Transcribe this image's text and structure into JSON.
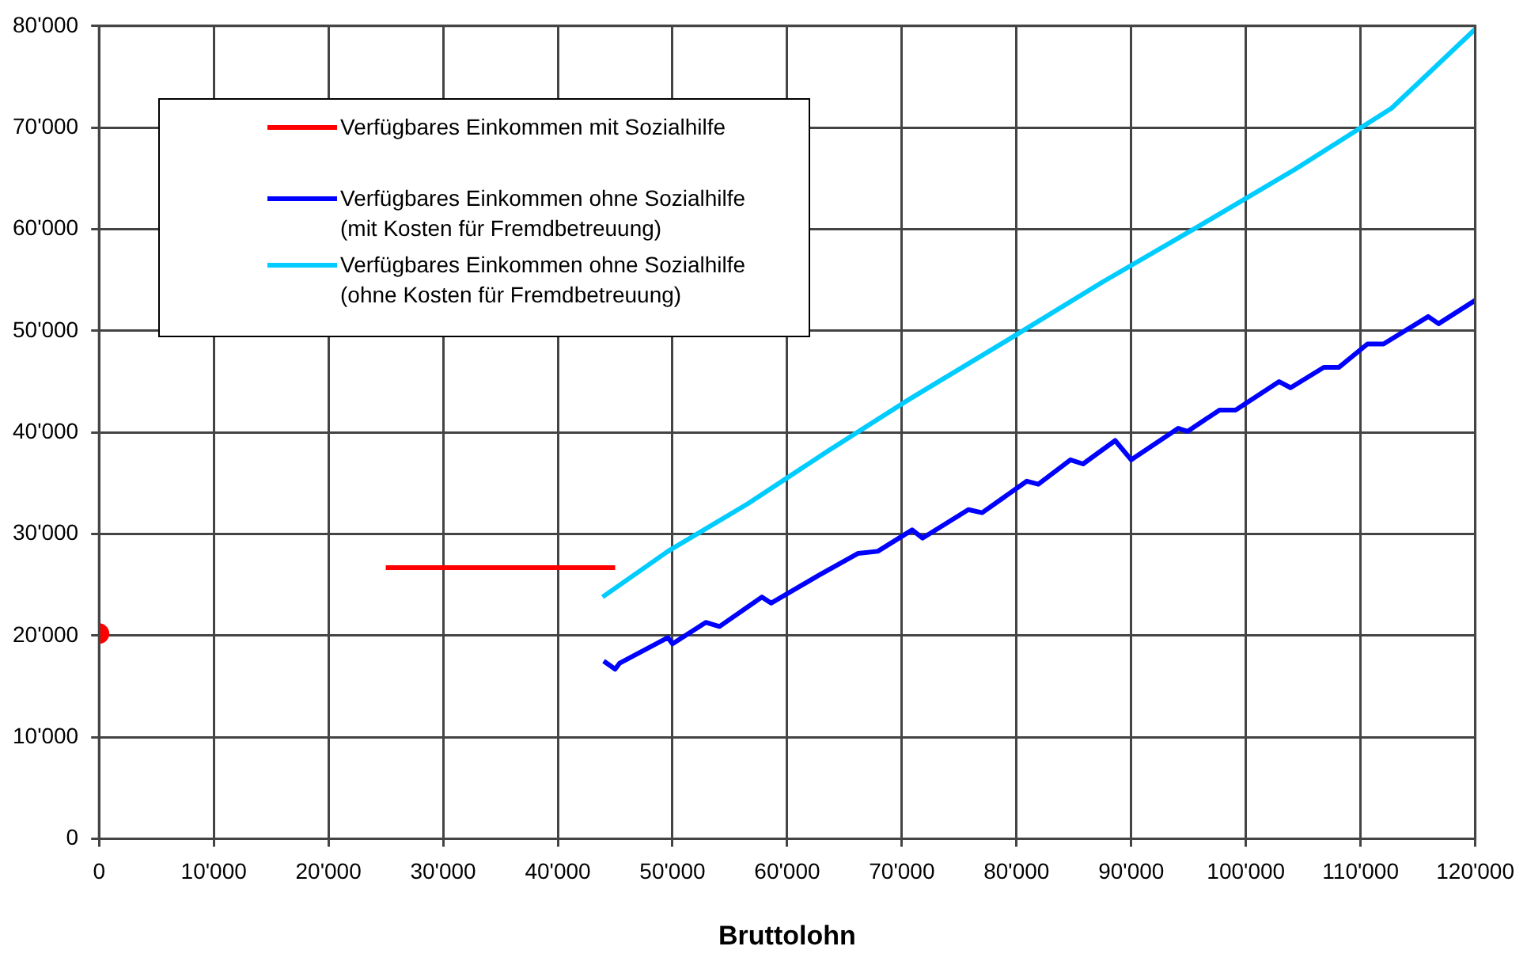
{
  "chart_data": {
    "type": "line",
    "xlabel": "Bruttolohn",
    "xlim": [
      0,
      120000
    ],
    "ylim": [
      0,
      80000
    ],
    "xticks": [
      0,
      {
        "value": 10000,
        "label": "10'000"
      },
      {
        "value": 20000,
        "label": "20'000"
      },
      {
        "value": 30000,
        "label": "30'000"
      },
      {
        "value": 40000,
        "label": "40'000"
      },
      {
        "value": 50000,
        "label": "50'000"
      },
      {
        "value": 60000,
        "label": "60'000"
      },
      {
        "value": 70000,
        "label": "70'000"
      },
      {
        "value": 80000,
        "label": "80'000"
      },
      {
        "value": 90000,
        "label": "90'000"
      },
      {
        "value": 100000,
        "label": "100'000"
      },
      {
        "value": 110000,
        "label": "110'000"
      },
      {
        "value": 120000,
        "label": "120'000"
      }
    ],
    "yticks": [
      0,
      {
        "value": 10000,
        "label": "10'000"
      },
      {
        "value": 20000,
        "label": "20'000"
      },
      {
        "value": 30000,
        "label": "30'000"
      },
      {
        "value": 40000,
        "label": "40'000"
      },
      {
        "value": 50000,
        "label": "50'000"
      },
      {
        "value": 60000,
        "label": "60'000"
      },
      {
        "value": 70000,
        "label": "70'000"
      },
      {
        "value": 80000,
        "label": "80'000"
      }
    ],
    "grid": true,
    "legend": "top left",
    "marker": "none",
    "line_style": "solid",
    "series": [
      {
        "name": "Verfügbares Einkommen mit Sozialhilfe",
        "color": "#ff0000",
        "x": [
          25000,
          45000
        ],
        "values": [
          26700,
          26700
        ]
      },
      {
        "type": "scatter",
        "marker": "circle",
        "color": "#ff0000",
        "x": [
          0
        ],
        "values": [
          20200
        ]
      },
      {
        "name": "Verfügbares Einkommen ohne Sozialhilfe\n(mit Kosten für Fremdbetreuung)",
        "color": "#0000ff",
        "x": [
          44000,
          45000,
          45400,
          49600,
          50000,
          52900,
          54100,
          57800,
          58600,
          62700,
          66200,
          67900,
          70900,
          71800,
          75800,
          77000,
          80900,
          81900,
          84700,
          85800,
          88600,
          90000,
          94100,
          94900,
          97700,
          99100,
          102900,
          103900,
          106800,
          108100,
          110600,
          112000,
          115900,
          116800,
          120000
        ],
        "values": [
          17500,
          16700,
          17300,
          19800,
          19200,
          21300,
          20900,
          23800,
          23200,
          25900,
          28100,
          28300,
          30400,
          29600,
          32400,
          32100,
          35200,
          34900,
          37300,
          36900,
          39200,
          37300,
          40400,
          40100,
          42200,
          42200,
          45000,
          44400,
          46400,
          46400,
          48700,
          48700,
          51400,
          50700,
          53000
        ]
      },
      {
        "name": "Verfügbares Einkommen ohne Sozialhilfe\n(ohne Kosten für Fremdbetreuung)",
        "color": "#00ccff",
        "x": [
          43900,
          49600,
          56600,
          63600,
          70700,
          79100,
          87500,
          95900,
          104300,
          112700,
          120000
        ],
        "values": [
          23800,
          28300,
          33000,
          38200,
          43300,
          49000,
          54800,
          60300,
          65900,
          71900,
          79700
        ]
      }
    ]
  }
}
